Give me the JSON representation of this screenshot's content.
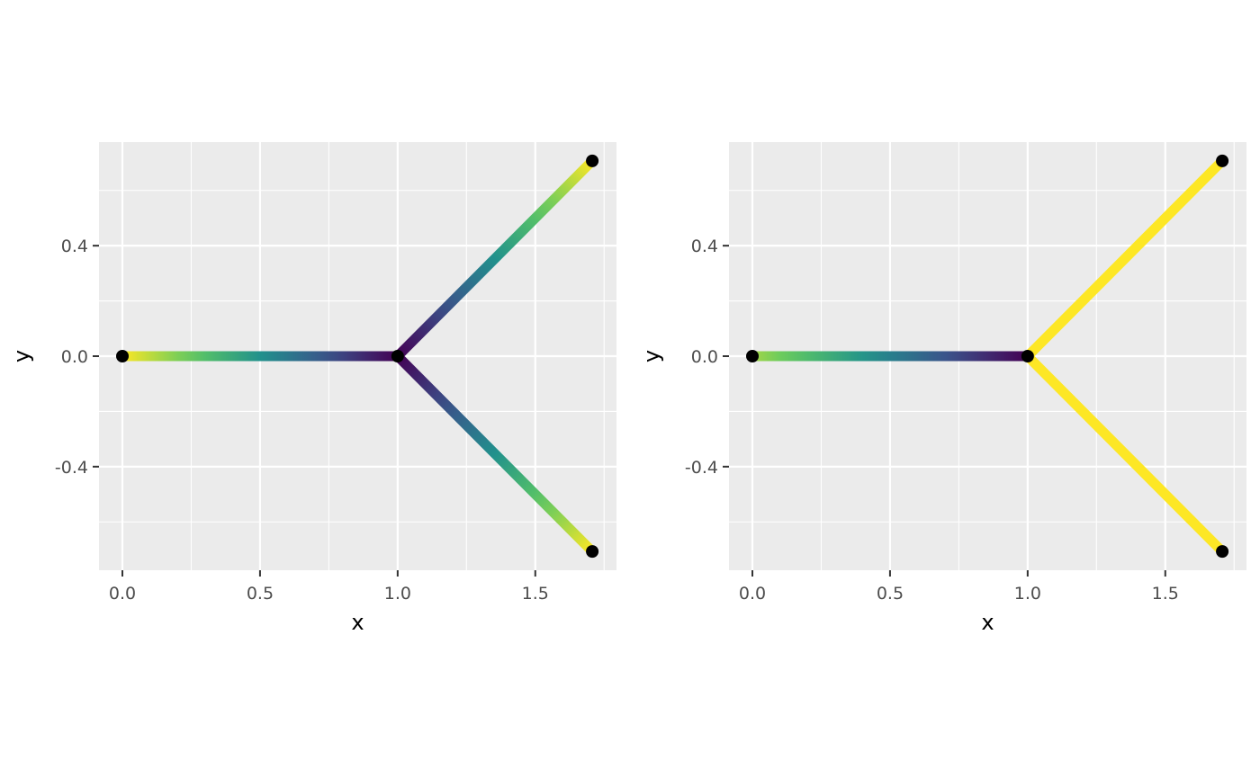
{
  "chart_data": [
    {
      "type": "line",
      "title": "",
      "xlabel": "x",
      "ylabel": "y",
      "xlim": [
        -0.085,
        1.795
      ],
      "ylim": [
        -0.775,
        0.775
      ],
      "x_ticks": [
        0.0,
        0.5,
        1.0,
        1.5
      ],
      "x_tick_labels": [
        "0.0",
        "0.5",
        "1.0",
        "1.5"
      ],
      "y_ticks": [
        -0.4,
        0.0,
        0.4
      ],
      "y_tick_labels": [
        "-0.4",
        "0.0",
        "0.4"
      ],
      "grid": true,
      "segments": [
        {
          "from": [
            0,
            0
          ],
          "to": [
            1,
            0
          ],
          "color_from": "#fde725",
          "color_to": "#440154"
        },
        {
          "from": [
            1,
            0
          ],
          "to": [
            1.707,
            0.707
          ],
          "color_from": "#440154",
          "color_to": "#fde725"
        },
        {
          "from": [
            1,
            0
          ],
          "to": [
            1.707,
            -0.707
          ],
          "color_from": "#440154",
          "color_to": "#fde725"
        }
      ],
      "points": [
        {
          "x": 0,
          "y": 0
        },
        {
          "x": 1,
          "y": 0
        },
        {
          "x": 1.707,
          "y": 0.707
        },
        {
          "x": 1.707,
          "y": -0.707
        }
      ]
    },
    {
      "type": "line",
      "title": "",
      "xlabel": "x",
      "ylabel": "y",
      "xlim": [
        -0.085,
        1.795
      ],
      "ylim": [
        -0.775,
        0.775
      ],
      "x_ticks": [
        0.0,
        0.5,
        1.0,
        1.5
      ],
      "x_tick_labels": [
        "0.0",
        "0.5",
        "1.0",
        "1.5"
      ],
      "y_ticks": [
        -0.4,
        0.0,
        0.4
      ],
      "y_tick_labels": [
        "-0.4",
        "0.0",
        "0.4"
      ],
      "grid": true,
      "segments": [
        {
          "from": [
            0,
            0
          ],
          "to": [
            1,
            0
          ],
          "color_from": "#a0da39",
          "color_to": "#440154"
        },
        {
          "from": [
            1,
            0
          ],
          "to": [
            1.707,
            0.707
          ],
          "color_from": "#fde725",
          "color_to": "#fde725"
        },
        {
          "from": [
            1,
            0
          ],
          "to": [
            1.707,
            -0.707
          ],
          "color_from": "#fde725",
          "color_to": "#fde725"
        }
      ],
      "points": [
        {
          "x": 0,
          "y": 0
        },
        {
          "x": 1,
          "y": 0
        },
        {
          "x": 1.707,
          "y": 0.707
        },
        {
          "x": 1.707,
          "y": -0.707
        }
      ]
    }
  ],
  "colors": {
    "panel_background": "#ebebeb",
    "grid_major": "#ffffff",
    "point": "#000000",
    "viridis": [
      "#440154",
      "#3b528b",
      "#21918c",
      "#5ec962",
      "#fde725"
    ]
  }
}
